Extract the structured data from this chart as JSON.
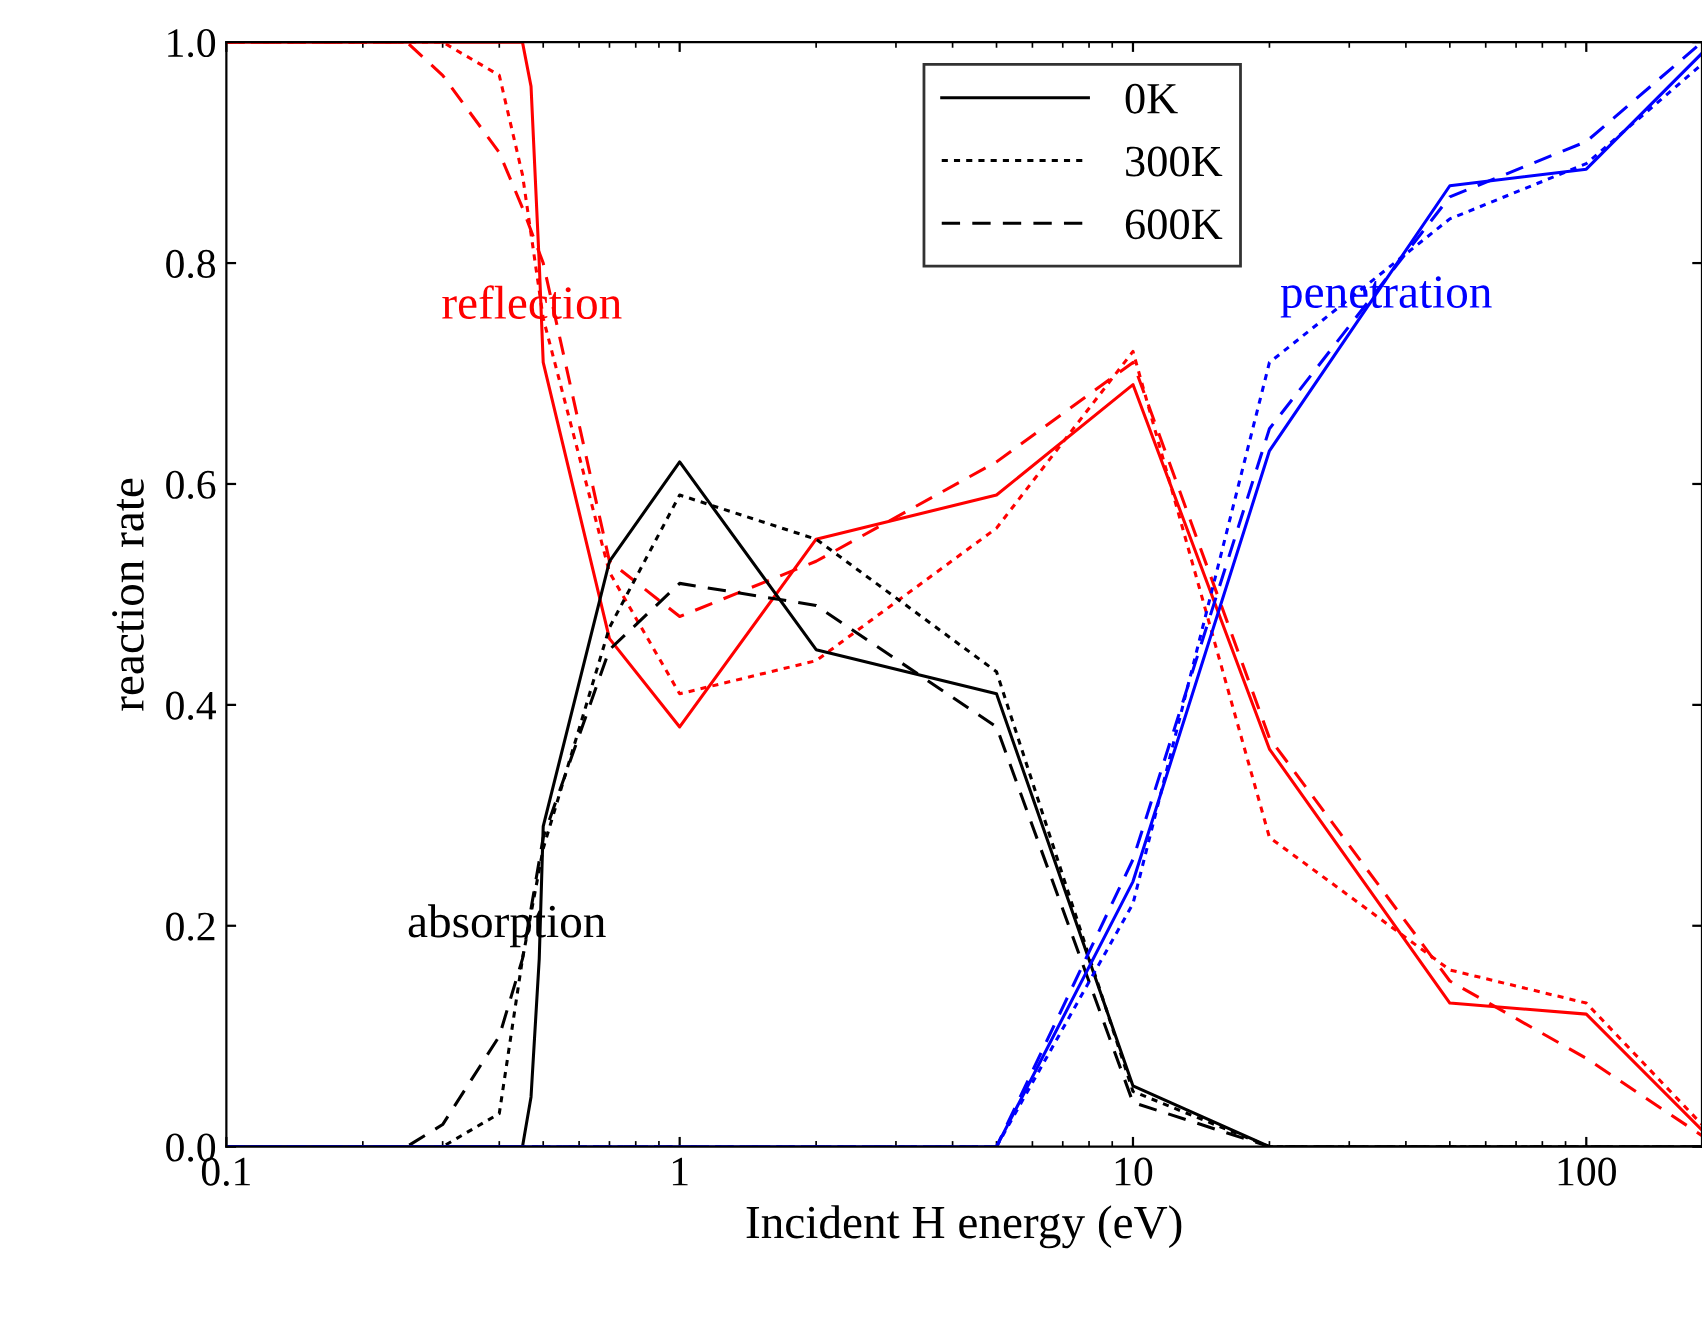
{
  "chart_data": {
    "type": "line",
    "xlabel": "Incident H energy (eV)",
    "ylabel": "reaction rate",
    "log": "x",
    "xlim": [
      0.1,
      180
    ],
    "xticks": [
      {
        "value": 0.1,
        "label": "0.1"
      },
      1,
      10,
      100
    ],
    "ylim": [
      0,
      1
    ],
    "yticks": [
      {
        "value": 0,
        "label": "0.0"
      },
      0.2,
      0.4,
      0.6,
      0.8,
      {
        "value": 1,
        "label": "1.0"
      }
    ],
    "legend": "top right",
    "grid": false,
    "marker": "none",
    "series": [
      {
        "color": "#ff0000",
        "line_style": "solid",
        "x": [
          0.1,
          0.45,
          0.47,
          0.49,
          0.5,
          0.7,
          1,
          2,
          5,
          10,
          20,
          50,
          100,
          180
        ],
        "values": [
          1.0,
          1.0,
          0.96,
          0.8,
          0.71,
          0.46,
          0.38,
          0.55,
          0.59,
          0.69,
          0.36,
          0.13,
          0.12,
          0.015
        ]
      },
      {
        "color": "#ff0000",
        "line_style": "dotted",
        "x": [
          0.1,
          0.3,
          0.4,
          0.45,
          0.5,
          0.7,
          1,
          2,
          5,
          10,
          20,
          50,
          100,
          180
        ],
        "values": [
          1.0,
          1.0,
          0.97,
          0.88,
          0.75,
          0.52,
          0.41,
          0.44,
          0.56,
          0.72,
          0.28,
          0.16,
          0.13,
          0.02
        ]
      },
      {
        "color": "#ff0000",
        "line_style": "dashed",
        "x": [
          0.1,
          0.25,
          0.3,
          0.4,
          0.45,
          0.5,
          0.7,
          1,
          2,
          5,
          10,
          20,
          50,
          100,
          180
        ],
        "values": [
          1.0,
          1.0,
          0.97,
          0.9,
          0.85,
          0.8,
          0.53,
          0.48,
          0.53,
          0.62,
          0.71,
          0.37,
          0.15,
          0.08,
          0.01
        ]
      },
      {
        "name": "0K",
        "color": "#000000",
        "line_style": "solid",
        "x": [
          0.1,
          0.45,
          0.47,
          0.49,
          0.5,
          0.7,
          1,
          2,
          5,
          10,
          20,
          180
        ],
        "values": [
          0,
          0,
          0.045,
          0.17,
          0.29,
          0.53,
          0.62,
          0.45,
          0.41,
          0.055,
          0,
          0
        ]
      },
      {
        "name": "300K",
        "color": "#000000",
        "line_style": "dotted",
        "x": [
          0.1,
          0.3,
          0.4,
          0.45,
          0.5,
          0.7,
          1,
          2,
          5,
          10,
          20,
          180
        ],
        "values": [
          0,
          0,
          0.03,
          0.17,
          0.27,
          0.47,
          0.59,
          0.55,
          0.43,
          0.05,
          0,
          0
        ]
      },
      {
        "name": "600K",
        "color": "#000000",
        "line_style": "dashed",
        "x": [
          0.1,
          0.25,
          0.3,
          0.4,
          0.45,
          0.5,
          0.7,
          1,
          2,
          5,
          10,
          20,
          180
        ],
        "values": [
          0,
          0,
          0.02,
          0.1,
          0.17,
          0.28,
          0.45,
          0.51,
          0.49,
          0.38,
          0.04,
          0,
          0
        ]
      },
      {
        "color": "#0000ff",
        "line_style": "solid",
        "x": [
          0.1,
          5,
          10,
          20,
          50,
          100,
          180
        ],
        "values": [
          0,
          0,
          0.24,
          0.63,
          0.87,
          0.885,
          0.99
        ]
      },
      {
        "color": "#0000ff",
        "line_style": "dotted",
        "x": [
          0.1,
          5,
          10,
          20,
          50,
          100,
          180
        ],
        "values": [
          0,
          0,
          0.22,
          0.71,
          0.84,
          0.89,
          0.98
        ]
      },
      {
        "color": "#0000ff",
        "line_style": "dashed",
        "x": [
          0.1,
          5,
          10,
          20,
          50,
          100,
          180
        ],
        "values": [
          0,
          0,
          0.26,
          0.65,
          0.86,
          0.91,
          1.0
        ]
      }
    ],
    "annotations": [
      "reflection",
      "absorption",
      "penetration"
    ]
  }
}
